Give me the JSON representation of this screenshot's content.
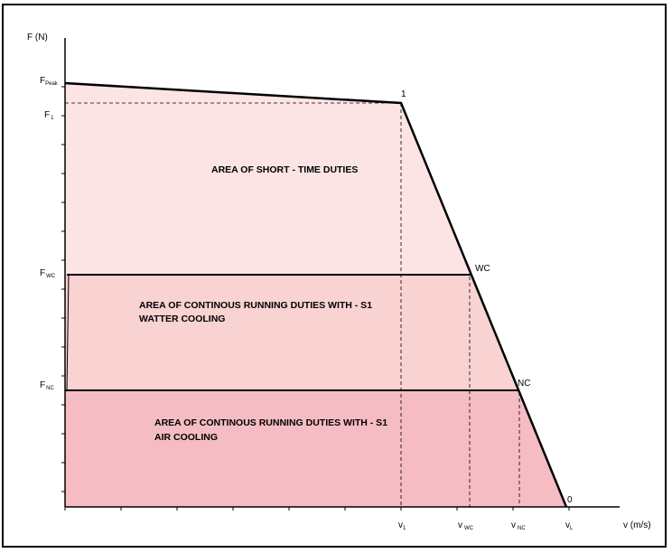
{
  "chart_data": {
    "type": "area",
    "ylabel": "F (N)",
    "xlabel": "v (m/s)",
    "force_labels": [
      {
        "key": "peak",
        "text": "F",
        "sub": "Peak"
      },
      {
        "key": "f1",
        "text": "F",
        "sub": "1"
      },
      {
        "key": "wc",
        "text": "F",
        "sub": "WC"
      },
      {
        "key": "nc",
        "text": "F",
        "sub": "NC"
      }
    ],
    "speed_labels": [
      {
        "key": "v1",
        "text": "v",
        "sub": "1"
      },
      {
        "key": "vwc",
        "text": "v",
        "sub": "WC"
      },
      {
        "key": "vnc",
        "text": "v",
        "sub": "NC"
      },
      {
        "key": "vl",
        "text": "v",
        "sub": "L"
      }
    ],
    "point_labels": {
      "p1": "1",
      "pwc": "WC",
      "pnc": "NC",
      "p0": "0"
    },
    "regions": [
      {
        "key": "short",
        "lines": [
          "AREA OF SHORT - TIME DUTIES"
        ],
        "color": "#fce4e4"
      },
      {
        "key": "water",
        "lines": [
          "AREA OF CONTINOUS RUNNING DUTIES WITH - S1",
          "WATTER COOLING"
        ],
        "color": "#f9d2d2"
      },
      {
        "key": "air",
        "lines": [
          "AREA OF CONTINOUS RUNNING DUTIES WITH - S1",
          "AIR COOLING"
        ],
        "color": "#f5bcc3"
      }
    ]
  }
}
